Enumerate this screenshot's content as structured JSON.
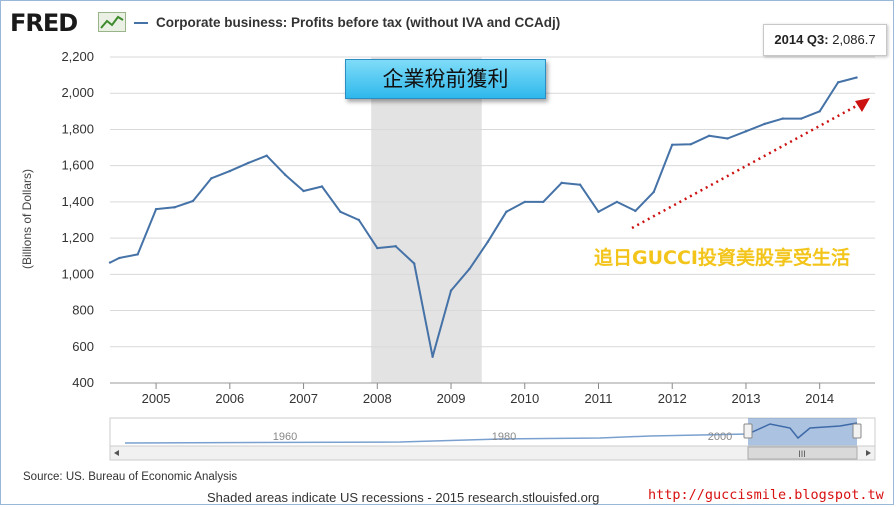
{
  "header": {
    "logo_text": "FRED",
    "series_legend": "Corporate business: Profits before tax (without IVA and CCAdj)",
    "series_color": "#4572a7"
  },
  "tooltip": {
    "period": "2014 Q3:",
    "value": "2,086.7"
  },
  "overlay": {
    "title_zh": "企業稅前獲利",
    "watermark_zh": "追日GUCCI投資美股享受生活",
    "blog_url": "http://guccismile.blogspot.tw",
    "trend_arrow_color": "#cc1111"
  },
  "footer": {
    "source": "Source: US. Bureau of Economic Analysis",
    "note": "Shaded areas indicate US recessions - 2015 research.stlouisfed.org"
  },
  "navigator": {
    "labels": [
      "1960",
      "1980",
      "2000"
    ],
    "scroll_grip": "III"
  },
  "chart_data": {
    "type": "line",
    "ylabel": "(Billions of Dollars)",
    "ylim": [
      400,
      2200
    ],
    "yticks": [
      "400",
      "600",
      "800",
      "1,000",
      "1,200",
      "1,400",
      "1,600",
      "1,800",
      "2,000",
      "2,200"
    ],
    "xticks": [
      "2005",
      "2006",
      "2007",
      "2008",
      "2009",
      "2010",
      "2011",
      "2012",
      "2013",
      "2014"
    ],
    "grid": true,
    "recession": {
      "start": 2007.917,
      "end": 2009.417
    },
    "series": [
      {
        "color": "#4572a7",
        "x": [
          2004.375,
          2004.5,
          2004.75,
          2005.0,
          2005.25,
          2005.5,
          2005.75,
          2006.0,
          2006.25,
          2006.5,
          2006.75,
          2007.0,
          2007.25,
          2007.5,
          2007.75,
          2008.0,
          2008.25,
          2008.5,
          2008.75,
          2009.0,
          2009.25,
          2009.5,
          2009.75,
          2010.0,
          2010.25,
          2010.5,
          2010.75,
          2011.0,
          2011.25,
          2011.5,
          2011.75,
          2012.0,
          2012.25,
          2012.5,
          2012.75,
          2013.0,
          2013.25,
          2013.5,
          2013.75,
          2014.0,
          2014.25,
          2014.5
        ],
        "y": [
          1065,
          1090,
          1110,
          1360,
          1370,
          1405,
          1530,
          1570,
          1615,
          1655,
          1550,
          1460,
          1485,
          1345,
          1300,
          1145,
          1155,
          1060,
          545,
          910,
          1030,
          1180,
          1345,
          1400,
          1400,
          1505,
          1495,
          1345,
          1400,
          1350,
          1455,
          1715,
          1718,
          1765,
          1750,
          1790,
          1830,
          1860,
          1860,
          1900,
          2060,
          2086.7
        ]
      }
    ]
  }
}
